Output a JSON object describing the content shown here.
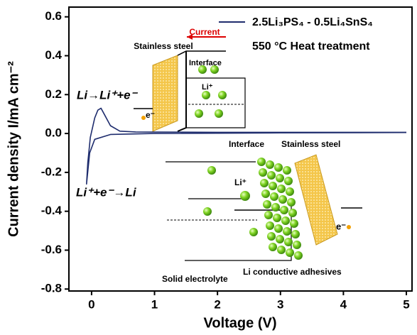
{
  "chart_data": {
    "type": "line",
    "xlabel": "Voltage (V)",
    "ylabel": "Current density I/mA cm⁻²",
    "xlim": [
      -0.36,
      5.09
    ],
    "ylim": [
      -0.81,
      0.65
    ],
    "xticks": [
      0,
      1,
      2,
      3,
      4,
      5
    ],
    "yticks": [
      0.6,
      0.4,
      0.2,
      {
        "value": 0,
        "label": "0.0"
      },
      -0.2,
      -0.4,
      -0.6,
      -0.8
    ],
    "legend_position": "upper right",
    "series": [
      {
        "name": "2.5Li₃PS₄ - 0.5Li₄SnS₄",
        "color": "#1f2d6e",
        "x": [
          5.0,
          3,
          1,
          0.3,
          0.05,
          -0.03,
          -0.08,
          -0.06,
          -0.02,
          0.05,
          0.1,
          0.15,
          0.2,
          0.3,
          0.45,
          0.7,
          2,
          5.0
        ],
        "values": [
          0.005,
          0.003,
          0.0,
          -0.005,
          -0.03,
          -0.1,
          -0.26,
          -0.15,
          -0.02,
          0.08,
          0.12,
          0.13,
          0.1,
          0.04,
          0.012,
          0.008,
          0.006,
          0.006
        ]
      }
    ],
    "annotations": [
      "550 °C Heat treatment",
      "Current",
      "Stainless steel",
      "Interface",
      "Li→Li⁺+e⁻",
      "e⁻",
      "Li⁺",
      "Interface",
      "Stainless steel",
      "Li⁺",
      "e⁻",
      "Li⁺+e⁻→Li",
      "Solid electrolyte",
      "Li conductive adhesives"
    ]
  }
}
